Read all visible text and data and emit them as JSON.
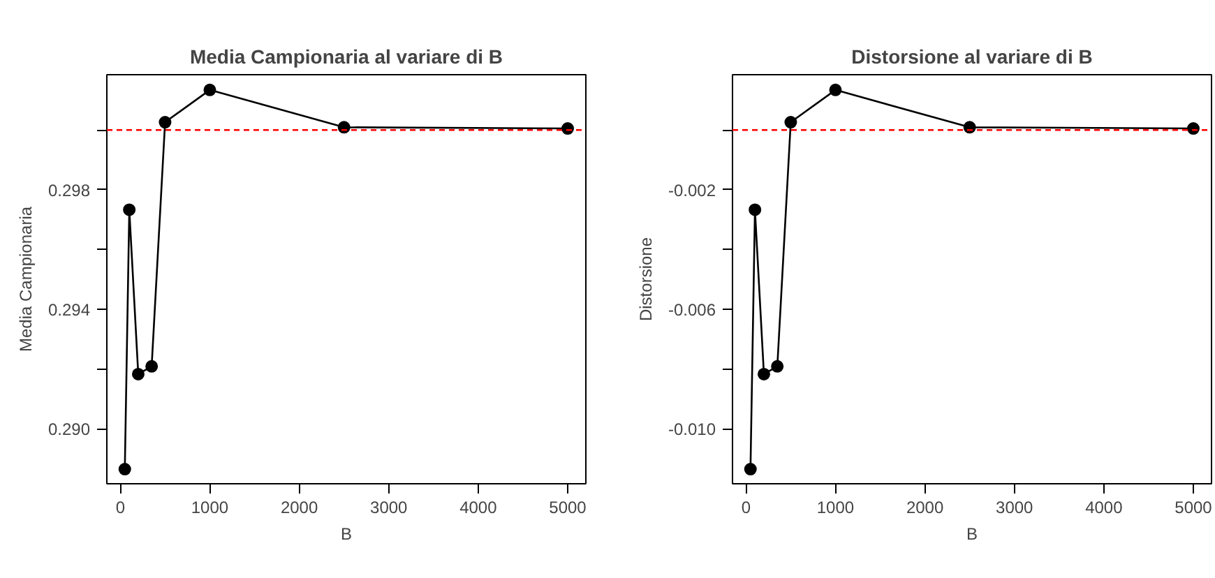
{
  "chart_data": [
    {
      "type": "line",
      "title": "Media Campionaria al variare di B",
      "xlabel": "B",
      "ylabel": "Media Campionaria",
      "x": [
        50,
        100,
        200,
        350,
        500,
        1000,
        2500,
        5000
      ],
      "series": [
        {
          "color": "#000000",
          "values": [
            0.28865,
            0.29733,
            0.29183,
            0.29209,
            0.30026,
            0.30134,
            0.30009,
            0.30005
          ]
        }
      ],
      "xlim": [
        -151,
        5203
      ],
      "ylim": [
        0.28816,
        0.30185
      ],
      "xticks": [
        0,
        1000,
        2000,
        3000,
        4000,
        5000
      ],
      "yticks": [
        {
          "value": 0.29,
          "label": "0.290"
        },
        {
          "value": 0.292,
          "label": null
        },
        {
          "value": 0.294,
          "label": "0.294"
        },
        {
          "value": 0.296,
          "label": null
        },
        {
          "value": 0.298,
          "label": "0.298"
        },
        {
          "value": 0.3,
          "label": null
        }
      ],
      "ref_lines": [
        {
          "axis": "y",
          "value": 0.3,
          "color": "#ff0000",
          "line_style": "dashed"
        }
      ],
      "marker": "circle",
      "grid": false
    },
    {
      "type": "line",
      "title": "Distorsione al variare di B",
      "xlabel": "B",
      "ylabel": "Distorsione",
      "x": [
        50,
        100,
        200,
        350,
        500,
        1000,
        2500,
        5000
      ],
      "series": [
        {
          "color": "#000000",
          "values": [
            -0.01135,
            -0.00267,
            -0.00817,
            -0.00791,
            0.00026,
            0.00134,
            9e-05,
            5e-05
          ]
        }
      ],
      "xlim": [
        -151,
        5203
      ],
      "ylim": [
        -0.01184,
        0.00185
      ],
      "xticks": [
        0,
        1000,
        2000,
        3000,
        4000,
        5000
      ],
      "yticks": [
        {
          "value": -0.01,
          "label": "-0.010"
        },
        {
          "value": -0.008,
          "label": null
        },
        {
          "value": -0.006,
          "label": "-0.006"
        },
        {
          "value": -0.004,
          "label": null
        },
        {
          "value": -0.002,
          "label": "-0.002"
        },
        {
          "value": 0,
          "label": null
        }
      ],
      "ref_lines": [
        {
          "axis": "y",
          "value": 0,
          "color": "#ff0000",
          "line_style": "dashed"
        }
      ],
      "marker": "circle",
      "grid": false
    }
  ]
}
